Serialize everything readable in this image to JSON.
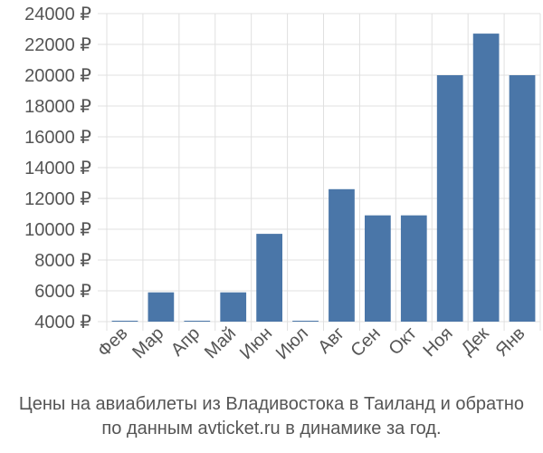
{
  "chart_data": {
    "type": "bar",
    "categories": [
      "Фев",
      "Мар",
      "Апр",
      "Май",
      "Июн",
      "Июл",
      "Авг",
      "Сен",
      "Окт",
      "Ноя",
      "Дек",
      "Янв"
    ],
    "values": [
      4000,
      5900,
      4000,
      5900,
      9700,
      4000,
      12600,
      10900,
      10900,
      20000,
      22700,
      20000
    ],
    "ylim": [
      4000,
      24000
    ],
    "yticks": [
      4000,
      6000,
      8000,
      10000,
      12000,
      14000,
      16000,
      18000,
      20000,
      22000,
      24000
    ],
    "ytick_suffix": " ₽",
    "grid": true,
    "bar_color": "#4a76a8"
  },
  "caption": {
    "line1": "Цены на авиабилеты из Владивостока в Таиланд и обратно",
    "line2": "по данным avticket.ru в динамике за год."
  }
}
